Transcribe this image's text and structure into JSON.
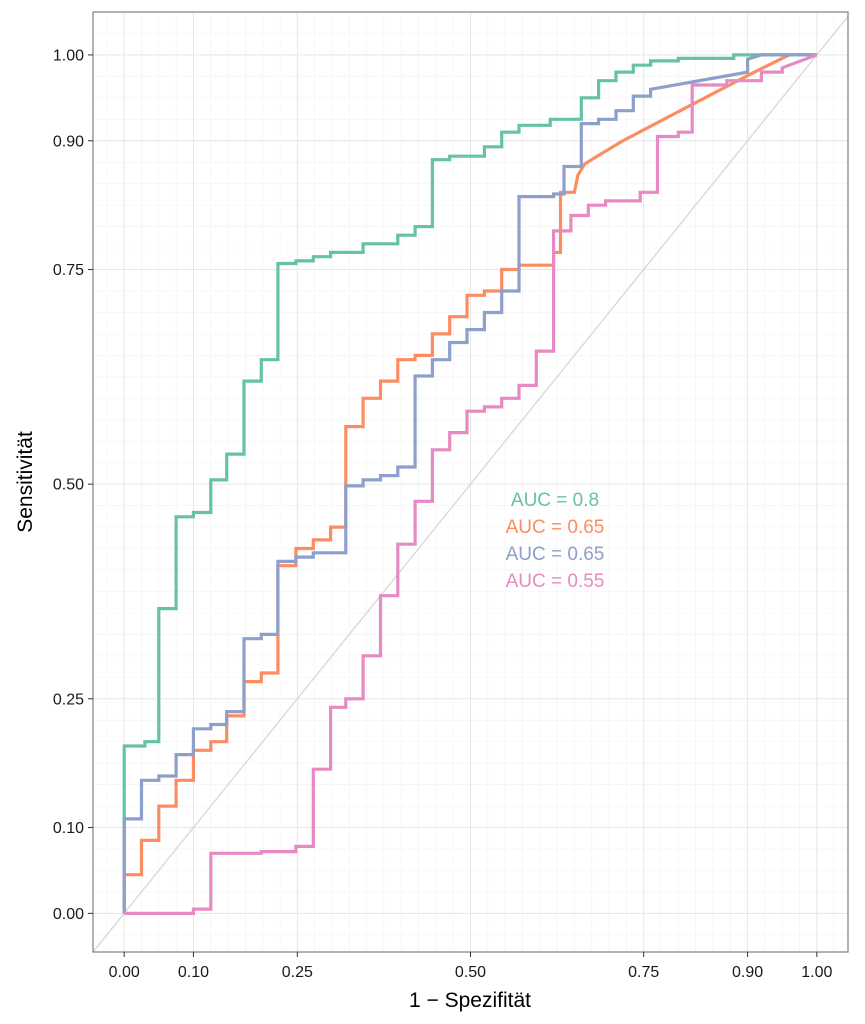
{
  "chart_data": {
    "type": "line",
    "title": "",
    "xlabel": "1 − Spezifität",
    "ylabel": "Sensitivität",
    "xlim": [
      -0.045,
      1.045
    ],
    "ylim": [
      -0.045,
      1.05
    ],
    "x_ticks": [
      0.0,
      0.1,
      0.25,
      0.5,
      0.75,
      0.9,
      1.0
    ],
    "x_tick_labels": [
      "0.00",
      "0.10",
      "0.25",
      "0.50",
      "0.75",
      "0.90",
      "1.00"
    ],
    "y_ticks": [
      0.0,
      0.1,
      0.25,
      0.5,
      0.75,
      0.9,
      1.0
    ],
    "y_tick_labels": [
      "0.00",
      "0.10",
      "0.25",
      "0.50",
      "0.75",
      "0.90",
      "1.00"
    ],
    "grid": true,
    "reference_diagonal": true,
    "series": [
      {
        "color": "#66c2a5",
        "auc_label": "AUC = 0.8",
        "points": [
          [
            0,
            0
          ],
          [
            0,
            0.1
          ],
          [
            0,
            0.195
          ],
          [
            0.03,
            0.195
          ],
          [
            0.03,
            0.2
          ],
          [
            0.05,
            0.2
          ],
          [
            0.05,
            0.355
          ],
          [
            0.075,
            0.355
          ],
          [
            0.075,
            0.462
          ],
          [
            0.1,
            0.462
          ],
          [
            0.1,
            0.467
          ],
          [
            0.125,
            0.467
          ],
          [
            0.125,
            0.505
          ],
          [
            0.148,
            0.505
          ],
          [
            0.148,
            0.535
          ],
          [
            0.173,
            0.535
          ],
          [
            0.173,
            0.62
          ],
          [
            0.198,
            0.62
          ],
          [
            0.198,
            0.645
          ],
          [
            0.222,
            0.645
          ],
          [
            0.222,
            0.757
          ],
          [
            0.248,
            0.757
          ],
          [
            0.248,
            0.76
          ],
          [
            0.273,
            0.76
          ],
          [
            0.273,
            0.765
          ],
          [
            0.298,
            0.765
          ],
          [
            0.298,
            0.77
          ],
          [
            0.345,
            0.77
          ],
          [
            0.345,
            0.78
          ],
          [
            0.395,
            0.78
          ],
          [
            0.395,
            0.79
          ],
          [
            0.42,
            0.79
          ],
          [
            0.42,
            0.8
          ],
          [
            0.445,
            0.8
          ],
          [
            0.445,
            0.878
          ],
          [
            0.47,
            0.878
          ],
          [
            0.47,
            0.882
          ],
          [
            0.52,
            0.882
          ],
          [
            0.52,
            0.893
          ],
          [
            0.545,
            0.893
          ],
          [
            0.545,
            0.91
          ],
          [
            0.57,
            0.91
          ],
          [
            0.57,
            0.918
          ],
          [
            0.615,
            0.918
          ],
          [
            0.615,
            0.925
          ],
          [
            0.66,
            0.925
          ],
          [
            0.66,
            0.95
          ],
          [
            0.685,
            0.95
          ],
          [
            0.685,
            0.97
          ],
          [
            0.71,
            0.97
          ],
          [
            0.71,
            0.98
          ],
          [
            0.735,
            0.98
          ],
          [
            0.735,
            0.988
          ],
          [
            0.76,
            0.988
          ],
          [
            0.76,
            0.993
          ],
          [
            0.8,
            0.993
          ],
          [
            0.8,
            0.996
          ],
          [
            0.88,
            0.996
          ],
          [
            0.88,
            1.0
          ],
          [
            1.0,
            1.0
          ]
        ]
      },
      {
        "color": "#fc8d62",
        "auc_label": "AUC = 0.65",
        "points": [
          [
            0,
            0
          ],
          [
            0,
            0.045
          ],
          [
            0.025,
            0.045
          ],
          [
            0.025,
            0.085
          ],
          [
            0.05,
            0.085
          ],
          [
            0.05,
            0.125
          ],
          [
            0.075,
            0.125
          ],
          [
            0.075,
            0.155
          ],
          [
            0.1,
            0.155
          ],
          [
            0.1,
            0.19
          ],
          [
            0.125,
            0.19
          ],
          [
            0.125,
            0.2
          ],
          [
            0.148,
            0.2
          ],
          [
            0.148,
            0.23
          ],
          [
            0.173,
            0.23
          ],
          [
            0.173,
            0.27
          ],
          [
            0.198,
            0.27
          ],
          [
            0.198,
            0.28
          ],
          [
            0.222,
            0.28
          ],
          [
            0.222,
            0.405
          ],
          [
            0.248,
            0.405
          ],
          [
            0.248,
            0.425
          ],
          [
            0.273,
            0.425
          ],
          [
            0.273,
            0.435
          ],
          [
            0.298,
            0.435
          ],
          [
            0.298,
            0.45
          ],
          [
            0.32,
            0.45
          ],
          [
            0.32,
            0.567
          ],
          [
            0.345,
            0.567
          ],
          [
            0.345,
            0.6
          ],
          [
            0.37,
            0.6
          ],
          [
            0.37,
            0.62
          ],
          [
            0.395,
            0.62
          ],
          [
            0.395,
            0.645
          ],
          [
            0.42,
            0.645
          ],
          [
            0.42,
            0.65
          ],
          [
            0.445,
            0.65
          ],
          [
            0.445,
            0.675
          ],
          [
            0.47,
            0.675
          ],
          [
            0.47,
            0.695
          ],
          [
            0.495,
            0.695
          ],
          [
            0.495,
            0.72
          ],
          [
            0.52,
            0.72
          ],
          [
            0.52,
            0.725
          ],
          [
            0.545,
            0.725
          ],
          [
            0.545,
            0.75
          ],
          [
            0.57,
            0.75
          ],
          [
            0.57,
            0.755
          ],
          [
            0.62,
            0.755
          ],
          [
            0.62,
            0.77
          ],
          [
            0.63,
            0.77
          ],
          [
            0.63,
            0.84
          ],
          [
            0.65,
            0.84
          ],
          [
            0.655,
            0.86
          ],
          [
            0.665,
            0.873
          ],
          [
            0.685,
            0.883
          ],
          [
            0.72,
            0.9
          ],
          [
            0.81,
            0.938
          ],
          [
            0.91,
            0.98
          ],
          [
            0.96,
            1.0
          ],
          [
            1.0,
            1.0
          ]
        ]
      },
      {
        "color": "#8da0cb",
        "auc_label": "AUC = 0.65",
        "points": [
          [
            0,
            0
          ],
          [
            0,
            0.045
          ],
          [
            0,
            0.11
          ],
          [
            0.025,
            0.11
          ],
          [
            0.025,
            0.155
          ],
          [
            0.05,
            0.155
          ],
          [
            0.05,
            0.16
          ],
          [
            0.075,
            0.16
          ],
          [
            0.075,
            0.185
          ],
          [
            0.1,
            0.185
          ],
          [
            0.1,
            0.215
          ],
          [
            0.125,
            0.215
          ],
          [
            0.125,
            0.22
          ],
          [
            0.148,
            0.22
          ],
          [
            0.148,
            0.235
          ],
          [
            0.173,
            0.235
          ],
          [
            0.173,
            0.32
          ],
          [
            0.198,
            0.32
          ],
          [
            0.198,
            0.325
          ],
          [
            0.222,
            0.325
          ],
          [
            0.222,
            0.41
          ],
          [
            0.248,
            0.41
          ],
          [
            0.248,
            0.415
          ],
          [
            0.273,
            0.415
          ],
          [
            0.273,
            0.42
          ],
          [
            0.32,
            0.42
          ],
          [
            0.32,
            0.498
          ],
          [
            0.345,
            0.498
          ],
          [
            0.345,
            0.505
          ],
          [
            0.37,
            0.505
          ],
          [
            0.37,
            0.51
          ],
          [
            0.395,
            0.51
          ],
          [
            0.395,
            0.52
          ],
          [
            0.42,
            0.52
          ],
          [
            0.42,
            0.626
          ],
          [
            0.445,
            0.626
          ],
          [
            0.445,
            0.645
          ],
          [
            0.47,
            0.645
          ],
          [
            0.47,
            0.665
          ],
          [
            0.495,
            0.665
          ],
          [
            0.495,
            0.68
          ],
          [
            0.52,
            0.68
          ],
          [
            0.52,
            0.7
          ],
          [
            0.545,
            0.7
          ],
          [
            0.545,
            0.725
          ],
          [
            0.57,
            0.725
          ],
          [
            0.57,
            0.835
          ],
          [
            0.62,
            0.835
          ],
          [
            0.62,
            0.838
          ],
          [
            0.635,
            0.838
          ],
          [
            0.635,
            0.87
          ],
          [
            0.66,
            0.87
          ],
          [
            0.66,
            0.92
          ],
          [
            0.685,
            0.92
          ],
          [
            0.685,
            0.925
          ],
          [
            0.71,
            0.925
          ],
          [
            0.71,
            0.935
          ],
          [
            0.735,
            0.935
          ],
          [
            0.735,
            0.952
          ],
          [
            0.76,
            0.952
          ],
          [
            0.76,
            0.96
          ],
          [
            0.9,
            0.98
          ],
          [
            0.9,
            0.995
          ],
          [
            0.92,
            1.0
          ],
          [
            1.0,
            1.0
          ]
        ]
      },
      {
        "color": "#e78ac3",
        "auc_label": "AUC = 0.55",
        "points": [
          [
            0,
            0
          ],
          [
            0.1,
            0
          ],
          [
            0.1,
            0.005
          ],
          [
            0.125,
            0.005
          ],
          [
            0.125,
            0.07
          ],
          [
            0.198,
            0.07
          ],
          [
            0.198,
            0.072
          ],
          [
            0.248,
            0.072
          ],
          [
            0.248,
            0.078
          ],
          [
            0.273,
            0.078
          ],
          [
            0.273,
            0.168
          ],
          [
            0.298,
            0.168
          ],
          [
            0.298,
            0.24
          ],
          [
            0.32,
            0.24
          ],
          [
            0.32,
            0.25
          ],
          [
            0.345,
            0.25
          ],
          [
            0.345,
            0.3
          ],
          [
            0.37,
            0.3
          ],
          [
            0.37,
            0.37
          ],
          [
            0.395,
            0.37
          ],
          [
            0.395,
            0.43
          ],
          [
            0.42,
            0.43
          ],
          [
            0.42,
            0.48
          ],
          [
            0.445,
            0.48
          ],
          [
            0.445,
            0.54
          ],
          [
            0.47,
            0.54
          ],
          [
            0.47,
            0.56
          ],
          [
            0.495,
            0.56
          ],
          [
            0.495,
            0.585
          ],
          [
            0.52,
            0.585
          ],
          [
            0.52,
            0.59
          ],
          [
            0.545,
            0.59
          ],
          [
            0.545,
            0.6
          ],
          [
            0.57,
            0.6
          ],
          [
            0.57,
            0.615
          ],
          [
            0.595,
            0.615
          ],
          [
            0.595,
            0.655
          ],
          [
            0.62,
            0.655
          ],
          [
            0.62,
            0.795
          ],
          [
            0.645,
            0.795
          ],
          [
            0.645,
            0.813
          ],
          [
            0.67,
            0.813
          ],
          [
            0.67,
            0.825
          ],
          [
            0.695,
            0.825
          ],
          [
            0.695,
            0.83
          ],
          [
            0.745,
            0.83
          ],
          [
            0.745,
            0.84
          ],
          [
            0.77,
            0.84
          ],
          [
            0.77,
            0.905
          ],
          [
            0.8,
            0.905
          ],
          [
            0.8,
            0.91
          ],
          [
            0.82,
            0.91
          ],
          [
            0.82,
            0.965
          ],
          [
            0.87,
            0.965
          ],
          [
            0.87,
            0.97
          ],
          [
            0.92,
            0.97
          ],
          [
            0.92,
            0.98
          ],
          [
            0.95,
            0.98
          ],
          [
            0.95,
            0.985
          ],
          [
            1.0,
            1.0
          ]
        ]
      }
    ]
  }
}
